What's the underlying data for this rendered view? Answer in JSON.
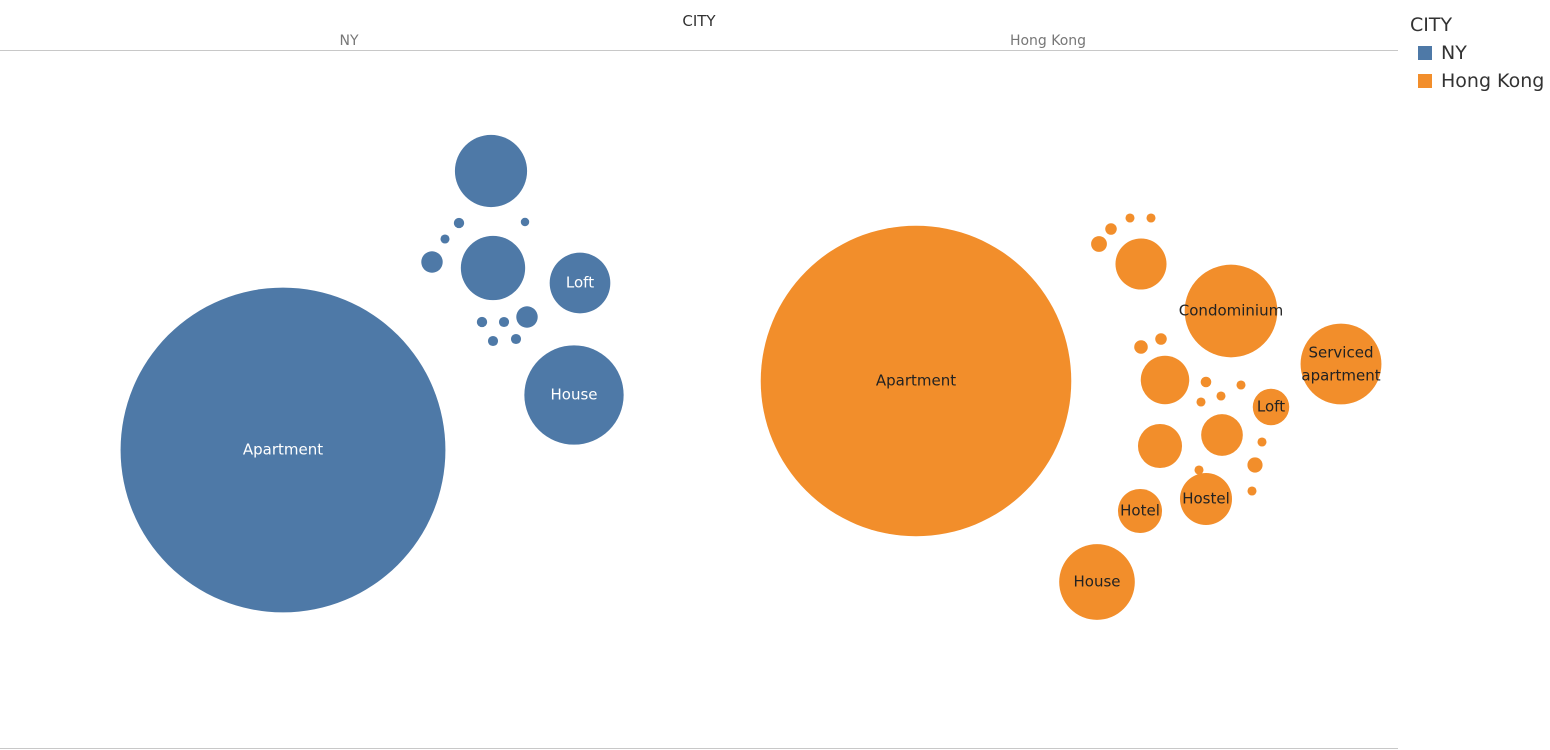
{
  "header": {
    "title": "CITY",
    "columns": [
      "NY",
      "Hong Kong"
    ]
  },
  "legend": {
    "title": "CITY",
    "items": [
      {
        "label": "NY",
        "color": "#4e79a7"
      },
      {
        "label": "Hong Kong",
        "color": "#f28e2b"
      }
    ]
  },
  "chart_data": {
    "type": "packed-bubble",
    "title": "",
    "series": [
      {
        "name": "NY",
        "color": "#4e79a7",
        "label_color": "#ffffff",
        "bubbles": [
          {
            "label": "Apartment",
            "value": 206.6
          },
          {
            "label": "",
            "value": 10.2
          },
          {
            "label": "",
            "value": 8.1
          },
          {
            "label": "Loft",
            "value": 7.2
          },
          {
            "label": "House",
            "value": 19.3
          },
          {
            "label": "",
            "value": 0.21
          },
          {
            "label": "",
            "value": 0.16
          },
          {
            "label": "",
            "value": 0.14
          },
          {
            "label": "",
            "value": 0.9
          },
          {
            "label": "",
            "value": 0.21
          },
          {
            "label": "",
            "value": 0.2
          },
          {
            "label": "",
            "value": 0.9
          },
          {
            "label": "",
            "value": 0.2
          },
          {
            "label": "",
            "value": 0.2
          }
        ]
      },
      {
        "name": "Hong Kong",
        "color": "#f28e2b",
        "label_color": "#222222",
        "bubbles": [
          {
            "label": "Apartment",
            "value": 188.8
          },
          {
            "label": "Condominium",
            "value": 16.8
          },
          {
            "label": "Serviced apartment",
            "value": 12.8
          },
          {
            "label": "House",
            "value": 11.2
          },
          {
            "label": "Hostel",
            "value": 5.3
          },
          {
            "label": "Hotel",
            "value": 3.8
          },
          {
            "label": "Loft",
            "value": 2.6
          },
          {
            "label": "",
            "value": 5.1
          },
          {
            "label": "",
            "value": 3.8
          },
          {
            "label": "",
            "value": 4.6
          },
          {
            "label": "",
            "value": 3.4
          },
          {
            "label": "",
            "value": 0.49
          },
          {
            "label": "",
            "value": 0.26
          },
          {
            "label": "",
            "value": 0.16
          },
          {
            "label": "",
            "value": 0.16
          },
          {
            "label": "",
            "value": 0.36
          },
          {
            "label": "",
            "value": 0.26
          },
          {
            "label": "",
            "value": 0.22
          },
          {
            "label": "",
            "value": 0.16
          },
          {
            "label": "",
            "value": 0.16
          },
          {
            "label": "",
            "value": 0.16
          },
          {
            "label": "",
            "value": 0.16
          },
          {
            "label": "",
            "value": 0.16
          },
          {
            "label": "",
            "value": 0.45
          },
          {
            "label": "",
            "value": 0.16
          }
        ]
      }
    ]
  }
}
